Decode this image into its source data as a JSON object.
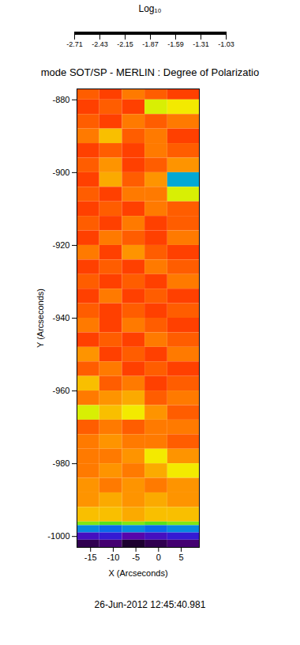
{
  "chart_data": {
    "type": "heatmap",
    "title": "mode SOT/SP - MERLIN : Degree of Polarizatio",
    "xlabel": "X (Arcseconds)",
    "ylabel": "Y (Arcseconds)",
    "annotation": "26-Jun-2012 12:45:40.981",
    "xlim": [
      -18,
      9
    ],
    "xticks": [
      -15,
      -10,
      -5,
      0,
      5
    ],
    "ylim": [
      -1003,
      -877
    ],
    "yticks": [
      -1000,
      -980,
      -960,
      -940,
      -920,
      -900,
      -880
    ],
    "cells": {
      "x_edges": [
        -18,
        -13,
        -8,
        -3,
        2,
        9
      ],
      "y_edges": [
        -877,
        -880,
        -884,
        -888,
        -892,
        -896,
        -900,
        -904,
        -908,
        -912,
        -916,
        -920,
        -924,
        -928,
        -932,
        -936,
        -940,
        -944,
        -948,
        -952,
        -956,
        -960,
        -964,
        -968,
        -972,
        -976,
        -980,
        -984,
        -988,
        -992,
        -996,
        -997,
        -999,
        -1001,
        -1003
      ],
      "values": [
        [
          -2.55,
          -2.6,
          -2.5,
          -2.55,
          -2.6
        ],
        [
          -2.6,
          -2.55,
          -2.6,
          -2.2,
          -2.25
        ],
        [
          -2.55,
          -2.6,
          -2.5,
          -2.55,
          -2.5
        ],
        [
          -2.5,
          -2.35,
          -2.55,
          -2.5,
          -2.6
        ],
        [
          -2.6,
          -2.55,
          -2.6,
          -2.5,
          -2.55
        ],
        [
          -2.55,
          -2.45,
          -2.6,
          -2.55,
          -2.45
        ],
        [
          -2.6,
          -2.4,
          -2.55,
          -2.45,
          -1.7
        ],
        [
          -2.55,
          -2.6,
          -2.5,
          -2.5,
          -2.2
        ],
        [
          -2.6,
          -2.55,
          -2.6,
          -2.5,
          -2.55
        ],
        [
          -2.55,
          -2.6,
          -2.5,
          -2.6,
          -2.55
        ],
        [
          -2.6,
          -2.5,
          -2.55,
          -2.6,
          -2.5
        ],
        [
          -2.5,
          -2.6,
          -2.45,
          -2.55,
          -2.6
        ],
        [
          -2.6,
          -2.55,
          -2.6,
          -2.5,
          -2.55
        ],
        [
          -2.55,
          -2.6,
          -2.55,
          -2.6,
          -2.5
        ],
        [
          -2.6,
          -2.5,
          -2.6,
          -2.55,
          -2.6
        ],
        [
          -2.55,
          -2.6,
          -2.55,
          -2.6,
          -2.55
        ],
        [
          -2.5,
          -2.6,
          -2.5,
          -2.55,
          -2.6
        ],
        [
          -2.6,
          -2.55,
          -2.6,
          -2.5,
          -2.55
        ],
        [
          -2.45,
          -2.6,
          -2.55,
          -2.6,
          -2.5
        ],
        [
          -2.55,
          -2.5,
          -2.6,
          -2.55,
          -2.6
        ],
        [
          -2.35,
          -2.55,
          -2.5,
          -2.6,
          -2.55
        ],
        [
          -2.5,
          -2.45,
          -2.4,
          -2.55,
          -2.5
        ],
        [
          -2.2,
          -2.35,
          -2.25,
          -2.45,
          -2.55
        ],
        [
          -2.55,
          -2.5,
          -2.55,
          -2.5,
          -2.5
        ],
        [
          -2.5,
          -2.45,
          -2.5,
          -2.5,
          -2.55
        ],
        [
          -2.5,
          -2.5,
          -2.45,
          -2.25,
          -2.45
        ],
        [
          -2.5,
          -2.45,
          -2.5,
          -2.4,
          -2.25
        ],
        [
          -2.45,
          -2.5,
          -2.45,
          -2.5,
          -2.45
        ],
        [
          -2.45,
          -2.4,
          -2.45,
          -2.4,
          -2.45
        ],
        [
          -2.35,
          -2.35,
          -2.4,
          -2.35,
          -2.35
        ],
        [
          -2.1,
          -2.05,
          -2.1,
          -2.05,
          -2.1
        ],
        [
          -1.65,
          -1.6,
          -1.65,
          -1.6,
          -1.65
        ],
        [
          -1.35,
          -1.4,
          -1.3,
          -1.35,
          -1.4
        ],
        [
          -1.15,
          -1.2,
          -1.1,
          -1.15,
          -1.2
        ]
      ]
    },
    "colorbar": {
      "label": "Log₁₀",
      "range": [
        -2.71,
        -1.03
      ],
      "ticks": [
        -2.71,
        -2.43,
        -2.15,
        -1.87,
        -1.59,
        -1.31,
        -1.03
      ]
    }
  }
}
